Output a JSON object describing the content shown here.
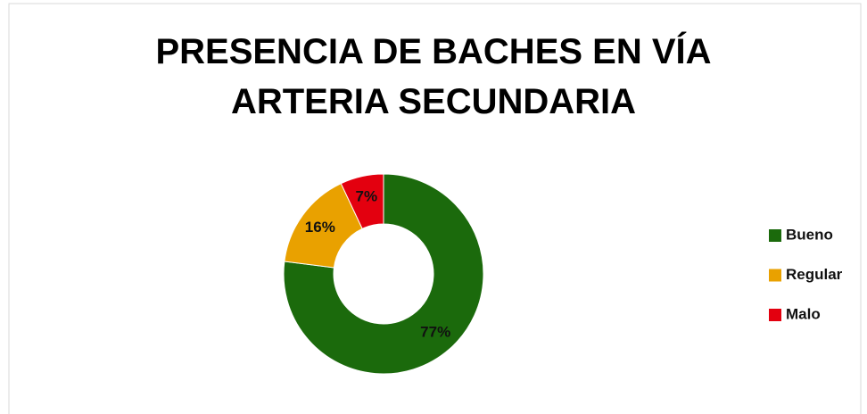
{
  "chart_data": {
    "type": "donut",
    "title": "PRESENCIA DE BACHES EN VÍA ARTERIA SECUNDARIA",
    "categories": [
      "Bueno",
      "Regular",
      "Malo"
    ],
    "values": [
      77,
      16,
      7
    ],
    "value_labels": [
      "77%",
      "16%",
      "7%"
    ],
    "colors": [
      "#1b6a0c",
      "#e9a100",
      "#e3000f"
    ],
    "legend": "right"
  }
}
